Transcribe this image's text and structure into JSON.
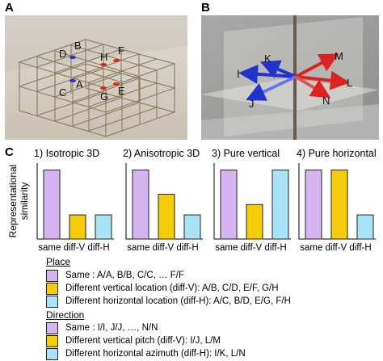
{
  "panels": {
    "a": {
      "letter": "A",
      "node_labels": [
        "D",
        "B",
        "C",
        "A",
        "H",
        "F",
        "G",
        "E"
      ]
    },
    "b": {
      "letter": "B",
      "vector_labels": [
        "K",
        "M",
        "I",
        "L",
        "J",
        "N"
      ]
    },
    "c": {
      "letter": "C",
      "ylabel_line1": "Representational",
      "ylabel_line2": "similarity"
    }
  },
  "colors": {
    "same": "#d5b5f0",
    "diff_v": "#f5cc0a",
    "diff_h": "#a9e3f7",
    "blue_marker": "#2233cc",
    "red_marker": "#dd2222"
  },
  "chart_data": [
    {
      "type": "bar",
      "title": "1) Isotropic 3D",
      "categories": [
        "same",
        "diff-V",
        "diff-H"
      ],
      "values": [
        1.0,
        0.35,
        0.35
      ],
      "ylim": [
        0,
        1.1
      ]
    },
    {
      "type": "bar",
      "title": "2) Anisotropic 3D",
      "categories": [
        "same",
        "diff-V",
        "diff-H"
      ],
      "values": [
        1.0,
        0.65,
        0.35
      ],
      "ylim": [
        0,
        1.1
      ]
    },
    {
      "type": "bar",
      "title": "3) Pure vertical",
      "categories": [
        "same",
        "diff-V",
        "diff-H"
      ],
      "values": [
        1.0,
        0.5,
        1.0
      ],
      "ylim": [
        0,
        1.1
      ]
    },
    {
      "type": "bar",
      "title": "4) Pure horizontal",
      "categories": [
        "same",
        "diff-V",
        "diff-H"
      ],
      "values": [
        1.0,
        1.0,
        0.35
      ],
      "ylim": [
        0,
        1.1
      ]
    }
  ],
  "legend": {
    "place": {
      "heading": "Place",
      "items": [
        "Same : A/A, B/B, C/C, … F/F",
        "Different vertical location (diff-V): A/B, C/D, E/F, G/H",
        "Different horizontal location (diff-H): A/C, B/D, E/G, F/H"
      ]
    },
    "direction": {
      "heading": "Direction",
      "items": [
        "Same : I/I, J/J, …, N/N",
        "Different vertical pitch (diff-V): I/J, L/M",
        "Different horizontal azimuth (diff-H): I/K, L/N"
      ]
    }
  }
}
